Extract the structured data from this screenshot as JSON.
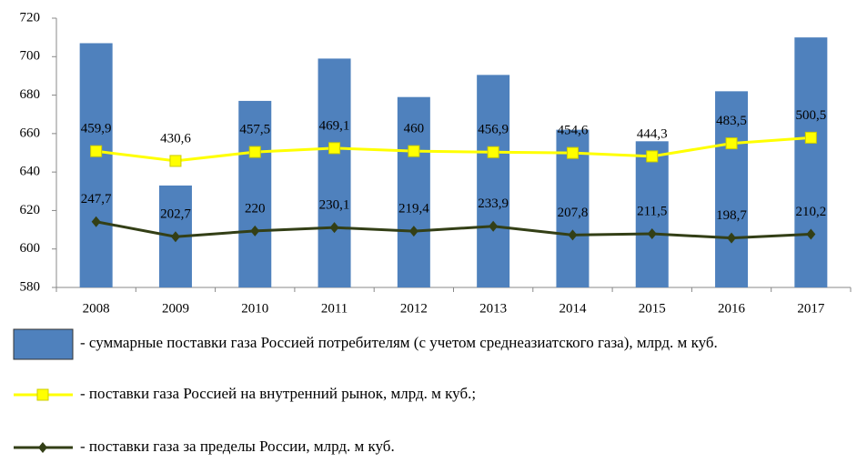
{
  "chart_data": {
    "type": "bar",
    "categories": [
      "2008",
      "2009",
      "2010",
      "2011",
      "2012",
      "2013",
      "2014",
      "2015",
      "2016",
      "2017"
    ],
    "ylim": [
      580,
      720
    ],
    "yticks": [
      580,
      600,
      620,
      640,
      660,
      680,
      700,
      720
    ],
    "y2lim": [
      50,
      860
    ],
    "series": [
      {
        "name": "- суммарные поставки газа Россией потребителям (с учетом среднеазиатского газа), млрд. м куб.",
        "type": "bar",
        "color": "#4f81bd",
        "values": [
          707,
          633,
          677,
          699,
          679,
          690.5,
          662,
          656,
          682,
          710
        ]
      },
      {
        "name": "- поставки газа Россией на внутренний рынок, млрд. м куб.;",
        "type": "line",
        "axis": "y2",
        "color": "#ffff00",
        "values": [
          459.9,
          430.6,
          457.5,
          469.1,
          460,
          456.9,
          454.6,
          444.3,
          483.5,
          500.5
        ],
        "value_labels": [
          "459,9",
          "430,6",
          "457,5",
          "469,1",
          "460",
          "456,9",
          "454,6",
          "444,3",
          "483,5",
          "500,5"
        ]
      },
      {
        "name": "- поставки газа за пределы России, млрд. м куб.",
        "type": "line",
        "axis": "y2",
        "color": "#333f16",
        "values": [
          247.7,
          202.7,
          220,
          230.1,
          219.4,
          233.9,
          207.8,
          211.5,
          198.7,
          210.2
        ],
        "value_labels": [
          "247,7",
          "202,7",
          "220",
          "230,1",
          "219,4",
          "233,9",
          "207,8",
          "211,5",
          "198,7",
          "210,2"
        ]
      }
    ]
  }
}
